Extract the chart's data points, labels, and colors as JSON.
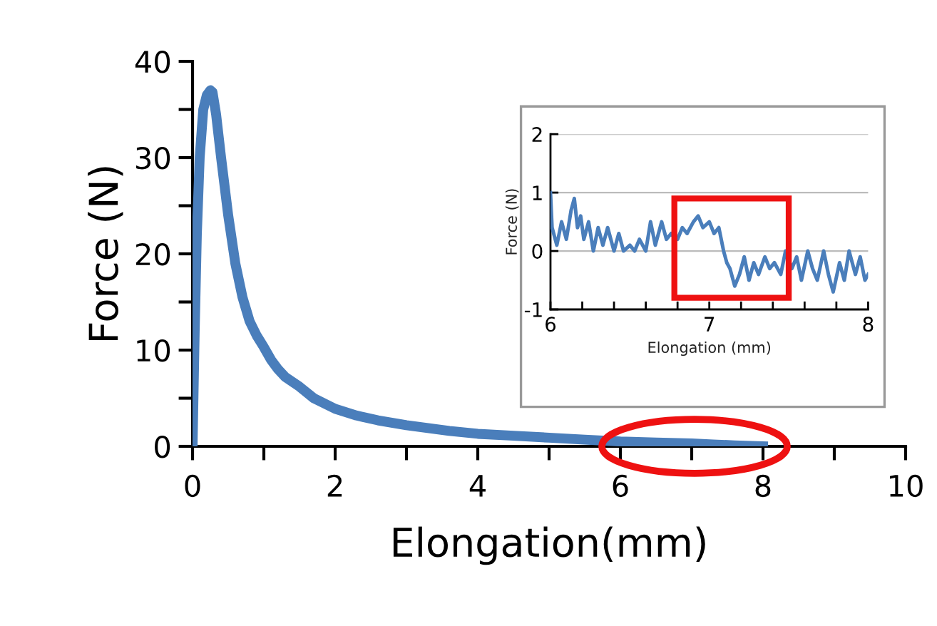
{
  "chart_data": [
    {
      "type": "line",
      "xlabel": "Elongation(mm)",
      "ylabel": "Force (N)",
      "series": [
        {
          "color": "#4a7ebb",
          "x": [
            0,
            0.03,
            0.06,
            0.1,
            0.15,
            0.2,
            0.25,
            0.28,
            0.33,
            0.4,
            0.5,
            0.6,
            0.7,
            0.8,
            0.9,
            1.0,
            1.1,
            1.2,
            1.3,
            1.5,
            1.7,
            2.0,
            2.3,
            2.6,
            3.0,
            3.3,
            3.6,
            4.0,
            4.5,
            5.0,
            5.5,
            6.0,
            6.5,
            7.0,
            7.3,
            7.6,
            8.0
          ],
          "values": [
            0,
            12,
            22,
            30,
            35,
            36.5,
            37,
            36.8,
            34.5,
            30,
            24,
            19,
            15.5,
            13,
            11.5,
            10.3,
            9,
            8,
            7.2,
            6.2,
            5,
            3.9,
            3.2,
            2.7,
            2.2,
            1.9,
            1.6,
            1.3,
            1.1,
            0.9,
            0.7,
            0.5,
            0.4,
            0.3,
            0.2,
            0.1,
            0.0
          ]
        }
      ],
      "xlim": [
        0,
        10
      ],
      "ylim": [
        0,
        40
      ],
      "xticks": [
        0,
        {
          "value": 1,
          "label": null
        },
        2,
        {
          "value": 3,
          "label": null
        },
        4,
        {
          "value": 5,
          "label": null
        },
        6,
        {
          "value": 7,
          "label": null
        },
        8,
        {
          "value": 9,
          "label": null
        },
        10
      ],
      "yticks": [
        0,
        {
          "value": 5,
          "label": null
        },
        10,
        {
          "value": 15,
          "label": null
        },
        20,
        {
          "value": 25,
          "label": null
        },
        30,
        {
          "value": 35,
          "label": null
        },
        40
      ],
      "grid": false,
      "marker": "none",
      "line_style": "solid"
    },
    {
      "type": "line",
      "xlabel": "Elongation (mm)",
      "ylabel": "Force (N)",
      "series": [
        {
          "color": "#4a7ebb",
          "x": [
            6.0,
            6.01,
            6.04,
            6.07,
            6.1,
            6.13,
            6.15,
            6.17,
            6.19,
            6.21,
            6.24,
            6.27,
            6.3,
            6.33,
            6.36,
            6.4,
            6.43,
            6.46,
            6.5,
            6.53,
            6.56,
            6.6,
            6.63,
            6.66,
            6.7,
            6.73,
            6.76,
            6.8,
            6.83,
            6.86,
            6.9,
            6.93,
            6.96,
            7.0,
            7.03,
            7.06,
            7.09,
            7.11,
            7.13,
            7.16,
            7.19,
            7.22,
            7.25,
            7.28,
            7.31,
            7.35,
            7.38,
            7.41,
            7.45,
            7.48,
            7.52,
            7.55,
            7.58,
            7.62,
            7.65,
            7.68,
            7.72,
            7.75,
            7.78,
            7.82,
            7.85,
            7.88,
            7.92,
            7.95,
            7.98,
            8.0
          ],
          "values": [
            1.0,
            0.4,
            0.1,
            0.5,
            0.2,
            0.7,
            0.9,
            0.4,
            0.6,
            0.2,
            0.5,
            0.0,
            0.4,
            0.1,
            0.4,
            0.0,
            0.3,
            0.0,
            0.1,
            0.0,
            0.2,
            0.0,
            0.5,
            0.1,
            0.5,
            0.2,
            0.3,
            0.2,
            0.4,
            0.3,
            0.5,
            0.6,
            0.4,
            0.5,
            0.3,
            0.4,
            0.0,
            -0.2,
            -0.3,
            -0.6,
            -0.4,
            -0.1,
            -0.5,
            -0.2,
            -0.4,
            -0.1,
            -0.3,
            -0.2,
            -0.4,
            0.0,
            -0.3,
            -0.1,
            -0.5,
            0.0,
            -0.3,
            -0.5,
            0.0,
            -0.4,
            -0.7,
            -0.2,
            -0.5,
            0.0,
            -0.4,
            -0.1,
            -0.5,
            -0.4
          ]
        }
      ],
      "xlim": [
        6,
        8
      ],
      "ylim": [
        -1,
        2
      ],
      "xticks": [
        6,
        {
          "value": 6.2,
          "label": null
        },
        {
          "value": 6.4,
          "label": null
        },
        {
          "value": 6.6,
          "label": null
        },
        {
          "value": 6.8,
          "label": null
        },
        7,
        {
          "value": 7.2,
          "label": null
        },
        {
          "value": 7.4,
          "label": null
        },
        {
          "value": 7.6,
          "label": null
        },
        {
          "value": 7.8,
          "label": null
        },
        8
      ],
      "yticks": [
        -1,
        0,
        1,
        2
      ],
      "grid": "y",
      "marker": "none",
      "line_style": "solid"
    }
  ]
}
